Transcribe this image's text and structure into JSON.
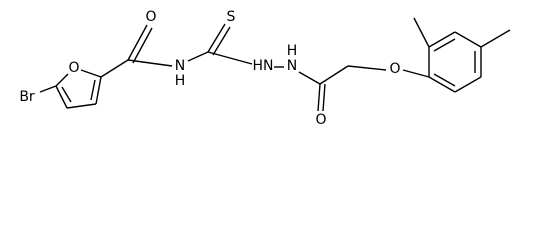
{
  "atoms": {
    "bromine": "Br",
    "furan_oxygen": "O",
    "amide_oxygen": "O",
    "amide_nitrogen": "N",
    "amide_hydrogen": "H",
    "sulfur": "S",
    "hydrazide_nh": "HN",
    "hydrazide_nitrogen": "N",
    "hydrazide_hydrogen": "H",
    "hydrazide_oxygen": "O",
    "ether_oxygen": "O"
  }
}
